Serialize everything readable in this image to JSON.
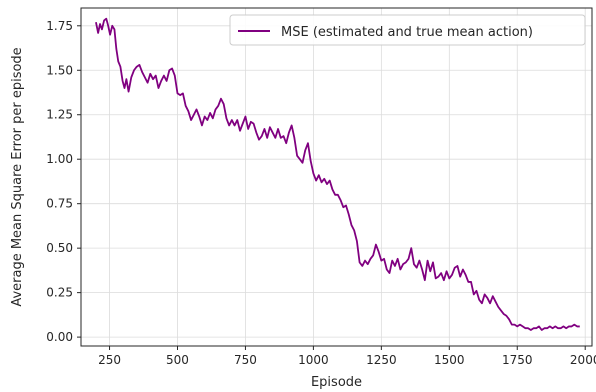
{
  "chart_data": {
    "type": "line",
    "title": "",
    "xlabel": "Episode",
    "ylabel": "Average Mean Square Error per episode",
    "xlim": [
      145,
      2025
    ],
    "ylim": [
      -0.05,
      1.85
    ],
    "xticks": [
      250,
      500,
      750,
      1000,
      1250,
      1500,
      1750,
      2000
    ],
    "yticks": [
      0.0,
      0.25,
      0.5,
      0.75,
      1.0,
      1.25,
      1.5,
      1.75
    ],
    "ytick_labels": [
      "0.00",
      "0.25",
      "0.50",
      "0.75",
      "1.00",
      "1.25",
      "1.50",
      "1.75"
    ],
    "grid": true,
    "legend_position": "top-right",
    "series": [
      {
        "name": "MSE (estimated and true mean action)",
        "color": "#800080",
        "points": [
          [
            200,
            1.77
          ],
          [
            208,
            1.71
          ],
          [
            215,
            1.76
          ],
          [
            222,
            1.73
          ],
          [
            230,
            1.78
          ],
          [
            238,
            1.79
          ],
          [
            245,
            1.75
          ],
          [
            252,
            1.7
          ],
          [
            260,
            1.75
          ],
          [
            268,
            1.73
          ],
          [
            275,
            1.62
          ],
          [
            282,
            1.55
          ],
          [
            290,
            1.52
          ],
          [
            298,
            1.44
          ],
          [
            305,
            1.4
          ],
          [
            312,
            1.45
          ],
          [
            320,
            1.38
          ],
          [
            330,
            1.46
          ],
          [
            340,
            1.5
          ],
          [
            350,
            1.52
          ],
          [
            360,
            1.53
          ],
          [
            370,
            1.49
          ],
          [
            380,
            1.46
          ],
          [
            390,
            1.43
          ],
          [
            400,
            1.48
          ],
          [
            410,
            1.45
          ],
          [
            420,
            1.47
          ],
          [
            430,
            1.4
          ],
          [
            440,
            1.44
          ],
          [
            450,
            1.47
          ],
          [
            460,
            1.44
          ],
          [
            470,
            1.5
          ],
          [
            480,
            1.51
          ],
          [
            490,
            1.47
          ],
          [
            500,
            1.37
          ],
          [
            510,
            1.36
          ],
          [
            520,
            1.37
          ],
          [
            530,
            1.3
          ],
          [
            540,
            1.27
          ],
          [
            550,
            1.22
          ],
          [
            560,
            1.25
          ],
          [
            570,
            1.28
          ],
          [
            580,
            1.24
          ],
          [
            590,
            1.19
          ],
          [
            600,
            1.24
          ],
          [
            610,
            1.22
          ],
          [
            620,
            1.26
          ],
          [
            630,
            1.23
          ],
          [
            640,
            1.28
          ],
          [
            650,
            1.3
          ],
          [
            660,
            1.34
          ],
          [
            670,
            1.31
          ],
          [
            680,
            1.23
          ],
          [
            690,
            1.19
          ],
          [
            700,
            1.22
          ],
          [
            710,
            1.19
          ],
          [
            720,
            1.22
          ],
          [
            730,
            1.16
          ],
          [
            740,
            1.2
          ],
          [
            750,
            1.24
          ],
          [
            760,
            1.17
          ],
          [
            770,
            1.21
          ],
          [
            780,
            1.2
          ],
          [
            790,
            1.15
          ],
          [
            800,
            1.11
          ],
          [
            810,
            1.13
          ],
          [
            820,
            1.17
          ],
          [
            830,
            1.12
          ],
          [
            840,
            1.18
          ],
          [
            850,
            1.15
          ],
          [
            860,
            1.12
          ],
          [
            870,
            1.17
          ],
          [
            880,
            1.12
          ],
          [
            890,
            1.13
          ],
          [
            900,
            1.09
          ],
          [
            910,
            1.15
          ],
          [
            920,
            1.19
          ],
          [
            930,
            1.12
          ],
          [
            940,
            1.02
          ],
          [
            950,
            1.0
          ],
          [
            960,
            0.98
          ],
          [
            970,
            1.05
          ],
          [
            980,
            1.09
          ],
          [
            990,
            0.99
          ],
          [
            1000,
            0.92
          ],
          [
            1010,
            0.88
          ],
          [
            1020,
            0.91
          ],
          [
            1030,
            0.87
          ],
          [
            1040,
            0.89
          ],
          [
            1050,
            0.86
          ],
          [
            1060,
            0.88
          ],
          [
            1070,
            0.83
          ],
          [
            1080,
            0.8
          ],
          [
            1090,
            0.8
          ],
          [
            1100,
            0.77
          ],
          [
            1110,
            0.73
          ],
          [
            1120,
            0.74
          ],
          [
            1130,
            0.69
          ],
          [
            1140,
            0.63
          ],
          [
            1150,
            0.6
          ],
          [
            1160,
            0.54
          ],
          [
            1170,
            0.42
          ],
          [
            1180,
            0.4
          ],
          [
            1190,
            0.43
          ],
          [
            1200,
            0.41
          ],
          [
            1210,
            0.44
          ],
          [
            1220,
            0.46
          ],
          [
            1230,
            0.52
          ],
          [
            1240,
            0.48
          ],
          [
            1250,
            0.43
          ],
          [
            1260,
            0.44
          ],
          [
            1270,
            0.38
          ],
          [
            1280,
            0.36
          ],
          [
            1290,
            0.43
          ],
          [
            1300,
            0.4
          ],
          [
            1310,
            0.44
          ],
          [
            1320,
            0.38
          ],
          [
            1330,
            0.41
          ],
          [
            1340,
            0.42
          ],
          [
            1350,
            0.44
          ],
          [
            1360,
            0.5
          ],
          [
            1370,
            0.41
          ],
          [
            1380,
            0.39
          ],
          [
            1390,
            0.43
          ],
          [
            1400,
            0.38
          ],
          [
            1410,
            0.32
          ],
          [
            1420,
            0.43
          ],
          [
            1430,
            0.37
          ],
          [
            1440,
            0.42
          ],
          [
            1450,
            0.33
          ],
          [
            1460,
            0.34
          ],
          [
            1470,
            0.36
          ],
          [
            1480,
            0.32
          ],
          [
            1490,
            0.37
          ],
          [
            1500,
            0.33
          ],
          [
            1510,
            0.35
          ],
          [
            1520,
            0.39
          ],
          [
            1530,
            0.4
          ],
          [
            1540,
            0.34
          ],
          [
            1550,
            0.38
          ],
          [
            1560,
            0.35
          ],
          [
            1570,
            0.31
          ],
          [
            1580,
            0.31
          ],
          [
            1590,
            0.24
          ],
          [
            1600,
            0.26
          ],
          [
            1610,
            0.21
          ],
          [
            1620,
            0.19
          ],
          [
            1630,
            0.24
          ],
          [
            1640,
            0.22
          ],
          [
            1650,
            0.19
          ],
          [
            1660,
            0.23
          ],
          [
            1670,
            0.2
          ],
          [
            1680,
            0.17
          ],
          [
            1690,
            0.15
          ],
          [
            1700,
            0.13
          ],
          [
            1710,
            0.12
          ],
          [
            1720,
            0.1
          ],
          [
            1730,
            0.07
          ],
          [
            1740,
            0.07
          ],
          [
            1750,
            0.06
          ],
          [
            1760,
            0.07
          ],
          [
            1770,
            0.06
          ],
          [
            1780,
            0.05
          ],
          [
            1790,
            0.05
          ],
          [
            1800,
            0.04
          ],
          [
            1810,
            0.05
          ],
          [
            1820,
            0.05
          ],
          [
            1830,
            0.06
          ],
          [
            1840,
            0.04
          ],
          [
            1850,
            0.05
          ],
          [
            1860,
            0.05
          ],
          [
            1870,
            0.06
          ],
          [
            1880,
            0.05
          ],
          [
            1890,
            0.06
          ],
          [
            1900,
            0.05
          ],
          [
            1910,
            0.05
          ],
          [
            1920,
            0.06
          ],
          [
            1930,
            0.05
          ],
          [
            1940,
            0.06
          ],
          [
            1950,
            0.06
          ],
          [
            1960,
            0.07
          ],
          [
            1970,
            0.06
          ],
          [
            1980,
            0.06
          ]
        ]
      }
    ]
  }
}
